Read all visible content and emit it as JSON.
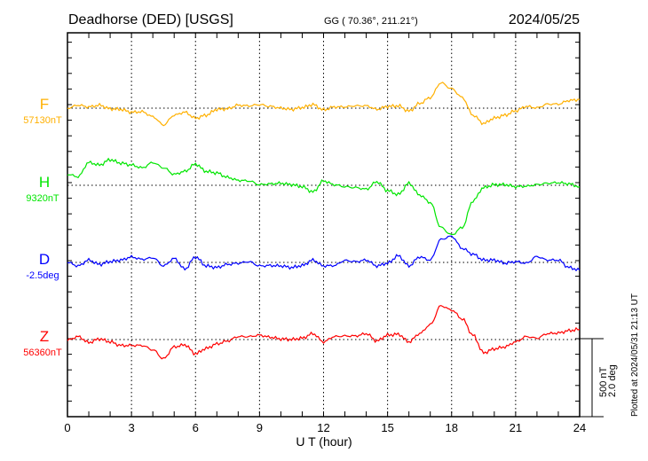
{
  "header": {
    "station": "Deadhorse (DED)  [USGS]",
    "coords": "GG ( 70.36°, 211.21°)",
    "date": "2024/05/25"
  },
  "footer": {
    "plotted_at": "Plotted at 2024/05/31 21:13 UT"
  },
  "scale": {
    "nt": "500 nT",
    "deg": "2.0 deg"
  },
  "colors": {
    "F": "#ffb000",
    "H": "#00e600",
    "D": "#0000ff",
    "Z": "#ff0000"
  },
  "chart_data": {
    "type": "line",
    "title": "Deadhorse (DED)  [USGS]",
    "xlabel": "U T (hour)",
    "xlim": [
      0,
      24
    ],
    "xticks": [
      "0",
      "3",
      "6",
      "9",
      "12",
      "15",
      "18",
      "21",
      "24"
    ],
    "grid": true,
    "scale_bar": "500 nT / 2.0 deg",
    "x": [
      0,
      0.5,
      1,
      1.5,
      2,
      2.5,
      3,
      3.5,
      4,
      4.5,
      5,
      5.5,
      6,
      6.5,
      7,
      7.5,
      8,
      8.5,
      9,
      9.5,
      10,
      10.5,
      11,
      11.5,
      12,
      12.5,
      13,
      13.5,
      14,
      14.5,
      15,
      15.5,
      16,
      16.5,
      17,
      17.5,
      18,
      18.5,
      19,
      19.5,
      20,
      20.5,
      21,
      21.5,
      22,
      22.5,
      23,
      23.5,
      24
    ],
    "series": [
      {
        "name": "F",
        "baseline_label": "57130nT",
        "unit": "nT",
        "values": [
          0,
          19,
          8,
          19,
          -4,
          -8,
          -26,
          -23,
          -55,
          -108,
          -45,
          -26,
          -64,
          -45,
          -8,
          -4,
          19,
          15,
          23,
          11,
          0,
          -8,
          4,
          23,
          -11,
          8,
          8,
          15,
          15,
          -8,
          11,
          15,
          -19,
          30,
          68,
          163,
          125,
          68,
          -45,
          -98,
          -64,
          -45,
          -17,
          11,
          2,
          26,
          26,
          49,
          55
        ]
      },
      {
        "name": "H",
        "baseline_label": "9320nT",
        "unit": "nT",
        "values": [
          70,
          55,
          146,
          130,
          164,
          142,
          130,
          112,
          146,
          112,
          70,
          89,
          136,
          89,
          79,
          51,
          32,
          28,
          4,
          9,
          13,
          4,
          -9,
          -43,
          28,
          4,
          -9,
          -15,
          -25,
          23,
          -34,
          -59,
          13,
          -62,
          -110,
          -270,
          -318,
          -270,
          -100,
          -15,
          4,
          4,
          -9,
          -6,
          4,
          13,
          17,
          9,
          -9
        ]
      },
      {
        "name": "D",
        "baseline_label": "-2.5deg",
        "unit": "deg",
        "values": [
          0,
          -0.09,
          0.06,
          -0.05,
          0.02,
          0.06,
          0.14,
          0.08,
          0.12,
          -0.09,
          0.1,
          -0.17,
          0.14,
          -0.09,
          -0.13,
          -0.05,
          -0.02,
          0.02,
          -0.09,
          -0.08,
          -0.09,
          -0.13,
          -0.08,
          0.06,
          -0.09,
          -0.08,
          0.05,
          0.02,
          0.06,
          -0.09,
          -0.02,
          0.17,
          -0.09,
          0.14,
          0.06,
          0.59,
          0.67,
          0.36,
          0.21,
          0.06,
          0.06,
          -0.02,
          0.02,
          -0.02,
          0.15,
          0.06,
          0.06,
          -0.13,
          -0.2
        ]
      },
      {
        "name": "Z",
        "baseline_label": "56360nT",
        "unit": "nT",
        "values": [
          -4,
          19,
          -19,
          4,
          -15,
          -38,
          -38,
          -38,
          -66,
          -123,
          -47,
          -34,
          -91,
          -57,
          -28,
          -9,
          19,
          19,
          28,
          15,
          4,
          0,
          9,
          38,
          -15,
          19,
          23,
          23,
          38,
          -9,
          28,
          34,
          -15,
          38,
          95,
          217,
          189,
          132,
          28,
          -85,
          -60,
          -47,
          -15,
          19,
          9,
          38,
          42,
          57,
          66
        ]
      }
    ]
  }
}
